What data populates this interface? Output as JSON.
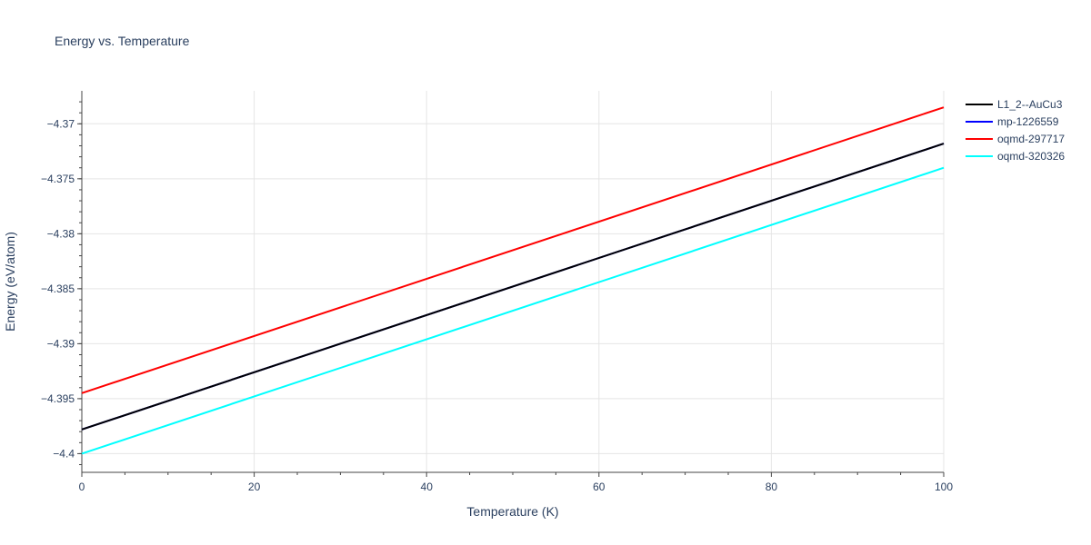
{
  "chart_data": {
    "type": "line",
    "title": "Energy vs. Temperature",
    "xlabel": "Temperature (K)",
    "ylabel": "Energy (eV/atom)",
    "xlim": [
      0,
      100
    ],
    "ylim": [
      -4.4017,
      -4.367
    ],
    "x_ticks": [
      0,
      20,
      40,
      60,
      80,
      100
    ],
    "x_tick_labels": [
      "0",
      "20",
      "40",
      "60",
      "80",
      "100"
    ],
    "y_ticks": [
      -4.4,
      -4.395,
      -4.39,
      -4.385,
      -4.38,
      -4.375,
      -4.37
    ],
    "y_tick_labels": [
      "−4.4",
      "−4.395",
      "−4.39",
      "−4.385",
      "−4.38",
      "−4.375",
      "−4.37"
    ],
    "grid": true,
    "legend_position": "top-right",
    "series": [
      {
        "name": "L1_2--AuCu3",
        "color": "#000000",
        "x": [
          0,
          100
        ],
        "y": [
          -4.3978,
          -4.3718
        ]
      },
      {
        "name": "mp-1226559",
        "color": "#0000ff",
        "x": [
          0,
          100
        ],
        "y": [
          -4.3978,
          -4.3718
        ]
      },
      {
        "name": "oqmd-297717",
        "color": "#ff0000",
        "x": [
          0,
          100
        ],
        "y": [
          -4.3945,
          -4.3685
        ]
      },
      {
        "name": "oqmd-320326",
        "color": "#00ffff",
        "x": [
          0,
          100
        ],
        "y": [
          -4.4,
          -4.374
        ]
      }
    ]
  }
}
